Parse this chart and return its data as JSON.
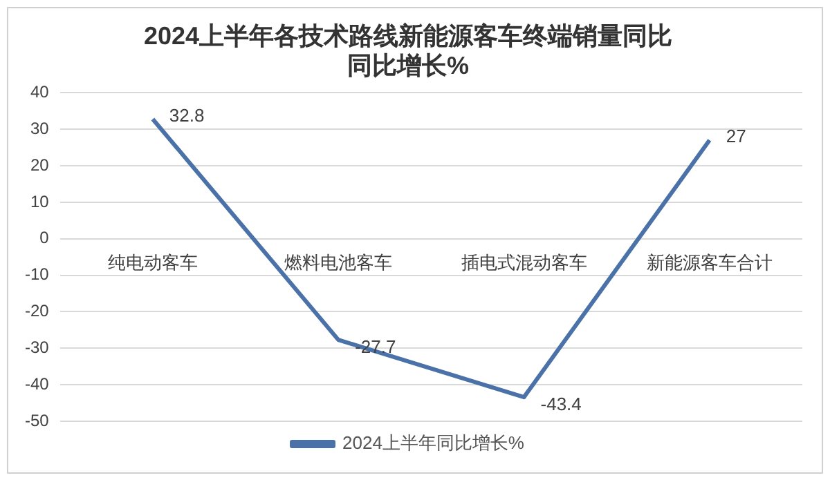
{
  "chart_data": {
    "type": "line",
    "title": "2024上半年各技术路线新能源客车终端销量同比同比增长%",
    "categories": [
      "纯电动客车",
      "燃料电池客车",
      "插电式混动客车",
      "新能源客车合计"
    ],
    "series": [
      {
        "name": "2024上半年同比增长%",
        "color": "#4a72a8",
        "values": [
          32.8,
          -27.7,
          -43.4,
          27
        ]
      }
    ],
    "ylim": [
      -50,
      40
    ],
    "yticks": [
      -50,
      -40,
      -30,
      -20,
      -10,
      0,
      10,
      20,
      30,
      40
    ],
    "grid": "y",
    "legend": "bottom",
    "marker": "none",
    "line_style": "solid",
    "data_labels": true
  }
}
